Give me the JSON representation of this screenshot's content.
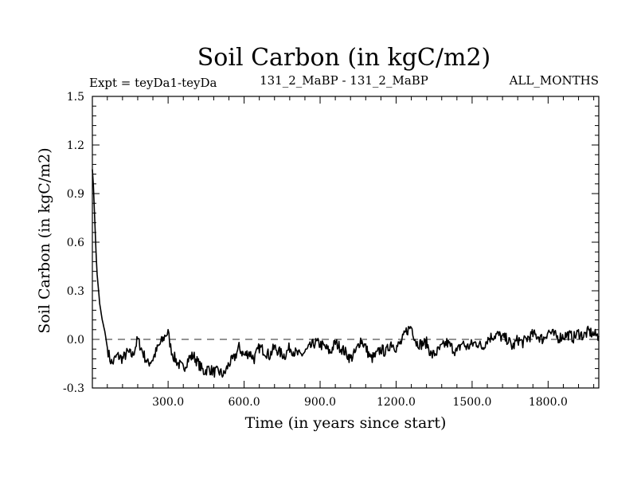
{
  "chart_data": {
    "type": "line",
    "title": "Soil Carbon (in kgC/m2)",
    "subtitle_left": "Expt = teyDa1-teyDa",
    "subtitle_center": "131_2_MaBP - 131_2_MaBP",
    "subtitle_right": "ALL_MONTHS",
    "xlabel": "Time (in years since start)",
    "ylabel": "Soil Carbon (in kgC/m2)",
    "xlim": [
      1,
      2000
    ],
    "ylim": [
      -0.3,
      1.5
    ],
    "xticks": [
      300,
      600,
      900,
      1200,
      1500,
      1800
    ],
    "xtick_labels": [
      "300.0",
      "600.0",
      "900.0",
      "1200.0",
      "1500.0",
      "1800.0"
    ],
    "yticks": [
      -0.3,
      0.0,
      0.3,
      0.6,
      0.9,
      1.2,
      1.5
    ],
    "ytick_labels": [
      "-0.3",
      "0.0",
      "0.3",
      "0.6",
      "0.9",
      "1.2",
      "1.5"
    ],
    "reference_line": {
      "y": 0.0,
      "style": "dashed"
    },
    "series": [
      {
        "name": "Soil Carbon",
        "color": "#000000",
        "x": [
          1,
          5,
          10,
          15,
          20,
          30,
          40,
          50,
          60,
          70,
          80,
          90,
          100,
          120,
          140,
          160,
          180,
          200,
          220,
          240,
          260,
          280,
          290,
          300,
          310,
          320,
          340,
          360,
          380,
          400,
          420,
          440,
          460,
          480,
          500,
          520,
          540,
          560,
          580,
          600,
          620,
          640,
          660,
          680,
          700,
          720,
          740,
          760,
          780,
          800,
          820,
          840,
          860,
          880,
          900,
          920,
          940,
          960,
          980,
          1000,
          1020,
          1040,
          1060,
          1080,
          1100,
          1120,
          1140,
          1160,
          1180,
          1200,
          1220,
          1240,
          1260,
          1280,
          1300,
          1320,
          1340,
          1360,
          1380,
          1400,
          1420,
          1440,
          1460,
          1480,
          1500,
          1520,
          1540,
          1560,
          1580,
          1600,
          1620,
          1640,
          1660,
          1680,
          1700,
          1720,
          1740,
          1760,
          1780,
          1800,
          1820,
          1840,
          1860,
          1880,
          1900,
          1920,
          1940,
          1960,
          1980,
          2000
        ],
        "y": [
          1.05,
          0.95,
          0.75,
          0.55,
          0.4,
          0.22,
          0.12,
          0.05,
          -0.05,
          -0.12,
          -0.15,
          -0.12,
          -0.1,
          -0.12,
          -0.08,
          -0.1,
          0.0,
          -0.08,
          -0.15,
          -0.12,
          -0.05,
          0.0,
          0.03,
          0.04,
          -0.05,
          -0.1,
          -0.15,
          -0.18,
          -0.12,
          -0.1,
          -0.15,
          -0.2,
          -0.18,
          -0.2,
          -0.2,
          -0.22,
          -0.15,
          -0.12,
          -0.05,
          -0.1,
          -0.08,
          -0.12,
          -0.05,
          -0.07,
          -0.1,
          -0.05,
          -0.08,
          -0.1,
          -0.05,
          -0.08,
          -0.1,
          -0.08,
          -0.05,
          -0.02,
          -0.03,
          -0.05,
          -0.08,
          -0.02,
          -0.05,
          -0.08,
          -0.12,
          -0.08,
          0.0,
          -0.05,
          -0.12,
          -0.1,
          -0.06,
          -0.08,
          -0.02,
          -0.05,
          -0.02,
          0.05,
          0.08,
          -0.02,
          -0.03,
          -0.02,
          -0.1,
          -0.08,
          -0.05,
          -0.02,
          -0.05,
          -0.08,
          -0.02,
          -0.05,
          -0.03,
          -0.02,
          -0.05,
          0.0,
          0.02,
          0.03,
          0.01,
          0.0,
          -0.05,
          0.0,
          -0.02,
          0.01,
          0.03,
          0.02,
          0.0,
          0.05,
          0.03,
          0.01,
          0.02,
          0.03,
          0.01,
          0.04,
          0.02,
          0.05,
          0.03,
          0.02
        ]
      }
    ]
  }
}
